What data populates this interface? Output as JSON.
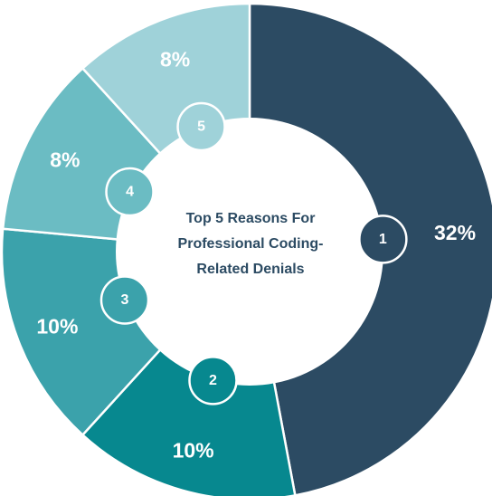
{
  "chart_data": {
    "type": "pie",
    "title": "Top 5 Reasons For Professional Coding-Related Denials",
    "title_lines": [
      "Top 5 Reasons For",
      "Professional Coding-",
      "Related Denials"
    ],
    "slices": [
      {
        "id": "1",
        "value": 32,
        "label": "32%",
        "color": "#2c4b63"
      },
      {
        "id": "2",
        "value": 10,
        "label": "10%",
        "color": "#07888f"
      },
      {
        "id": "3",
        "value": 10,
        "label": "10%",
        "color": "#3ba2ab"
      },
      {
        "id": "4",
        "value": 8,
        "label": "8%",
        "color": "#6bbcc3"
      },
      {
        "id": "5",
        "value": 8,
        "label": "8%",
        "color": "#9fd2d9"
      }
    ]
  }
}
